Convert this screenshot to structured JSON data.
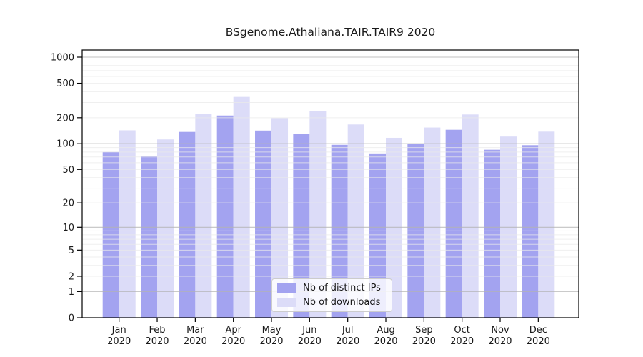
{
  "chart_data": {
    "type": "bar",
    "title": "BSgenome.Athaliana.TAIR.TAIR9 2020",
    "scale": "log1p",
    "categories": [
      "Jan",
      "Feb",
      "Mar",
      "Apr",
      "May",
      "Jun",
      "Jul",
      "Aug",
      "Sep",
      "Oct",
      "Nov",
      "Dec"
    ],
    "year_label": "2020",
    "series": [
      {
        "name": "Nb of distinct IPs",
        "color": "#a3a3f0",
        "values": [
          80,
          72,
          137,
          212,
          142,
          130,
          97,
          77,
          100,
          145,
          85,
          96
        ]
      },
      {
        "name": "Nb of downloads",
        "color": "#dcdcf8",
        "values": [
          143,
          112,
          221,
          348,
          198,
          238,
          167,
          117,
          154,
          218,
          121,
          138
        ]
      }
    ],
    "y_ticks": [
      0,
      1,
      2,
      5,
      10,
      20,
      50,
      100,
      200,
      500,
      1000
    ],
    "ylim": [
      0,
      1200
    ],
    "xlabel": "",
    "ylabel": "",
    "grid": true,
    "grid_decade_color": "#b3b3b3",
    "grid_minor_color": "#e9e9e9",
    "axis_color": "#000000",
    "legend_position": "bottom-center"
  }
}
